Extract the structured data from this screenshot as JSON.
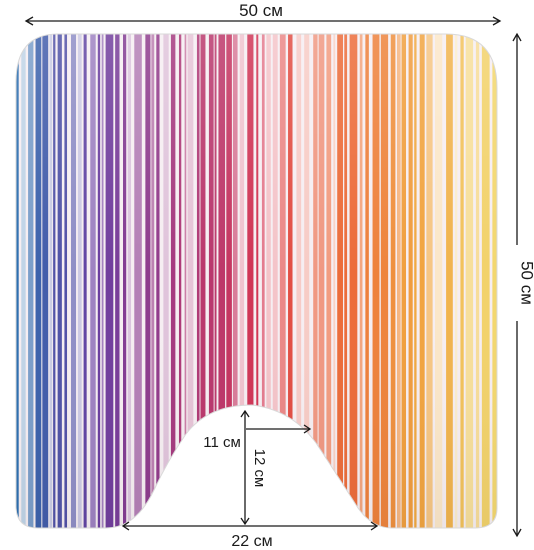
{
  "product": {
    "type": "u-shaped-bath-mat",
    "pattern": "vertical-stripes",
    "stripe_gradient": [
      "#2d6fb0",
      "#6a3ea1",
      "#a83a7e",
      "#d8344e",
      "#ec6a3a",
      "#f1a640",
      "#f3e27a"
    ]
  },
  "dimensions": {
    "width_label": "50 см",
    "height_label": "50 см",
    "cutout_half_width_label": "11 см",
    "cutout_depth_label": "12 см",
    "cutout_width_label": "22 см"
  }
}
